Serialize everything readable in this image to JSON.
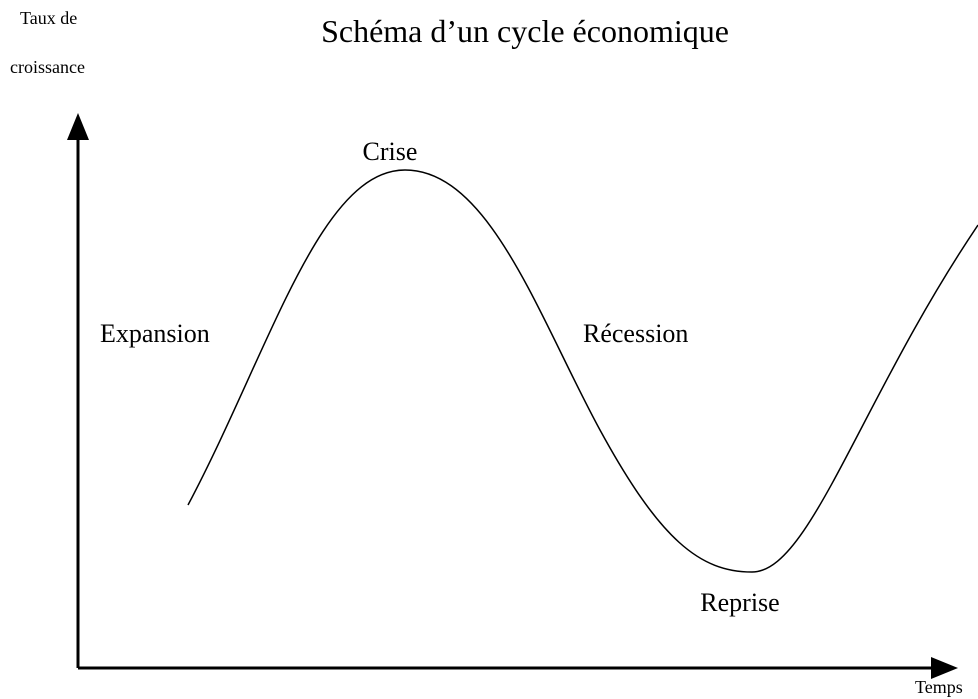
{
  "title": "Schéma d’un cycle économique",
  "y_axis_label": [
    "Taux de",
    "croissance"
  ],
  "x_axis_label": "Temps",
  "phases": [
    "Crise",
    "Expansion",
    "Récession",
    "Reprise"
  ]
}
